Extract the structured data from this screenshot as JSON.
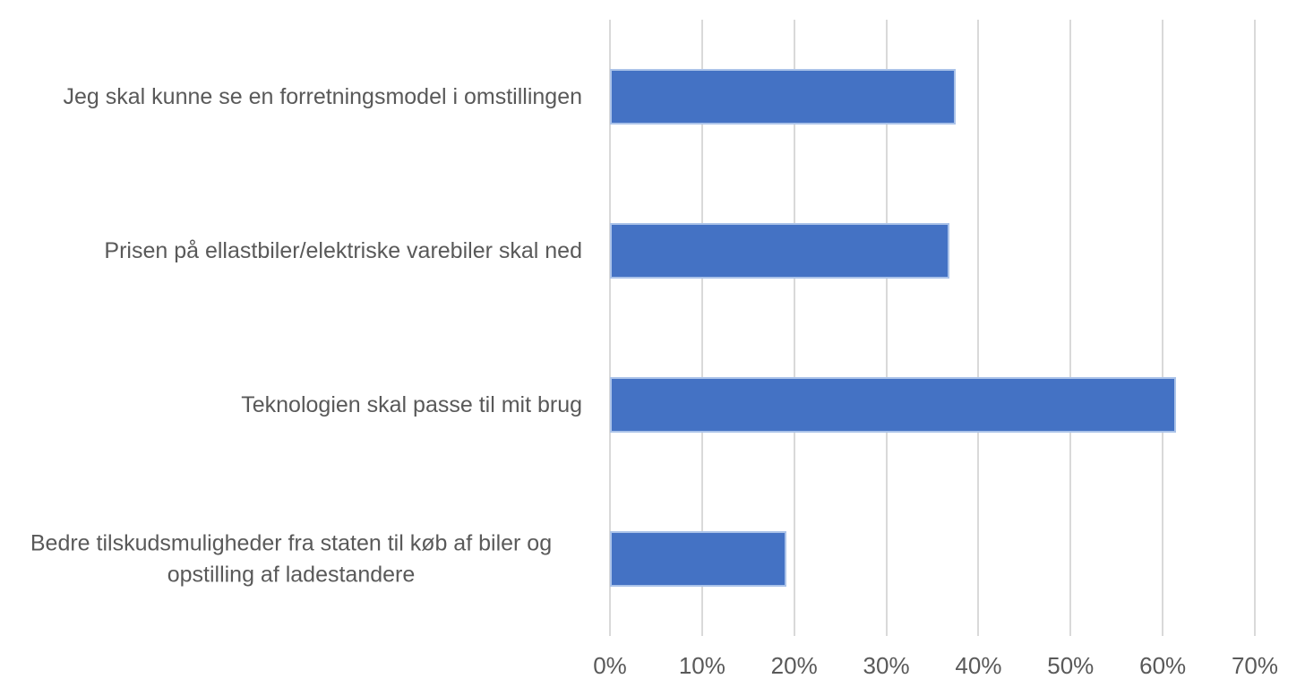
{
  "chart_data": {
    "type": "bar",
    "orientation": "horizontal",
    "title": "",
    "xlabel": "",
    "ylabel": "",
    "categories": [
      "Jeg skal kunne se en forretningsmodel i omstillingen",
      "Prisen på ellastbiler/elektriske varebiler skal ned",
      "Teknologien skal passe til mit brug",
      "Bedre tilskudsmuligheder fra staten til køb af biler og opstilling af ladestandere"
    ],
    "values": [
      37.5,
      36.8,
      61.4,
      19.2
    ],
    "value_unit": "%",
    "xlim": [
      0,
      70
    ],
    "x_ticks": [
      "0%",
      "10%",
      "20%",
      "30%",
      "40%",
      "50%",
      "60%",
      "70%"
    ],
    "x_tick_values": [
      0,
      10,
      20,
      30,
      40,
      50,
      60,
      70
    ],
    "grid": "vertical-only",
    "legend": "none",
    "colors": {
      "bar_fill": "#4472C4",
      "bar_border": "#ABC3E9",
      "gridline": "#D9D9D9",
      "text": "#595959",
      "background": "#FFFFFF"
    }
  }
}
